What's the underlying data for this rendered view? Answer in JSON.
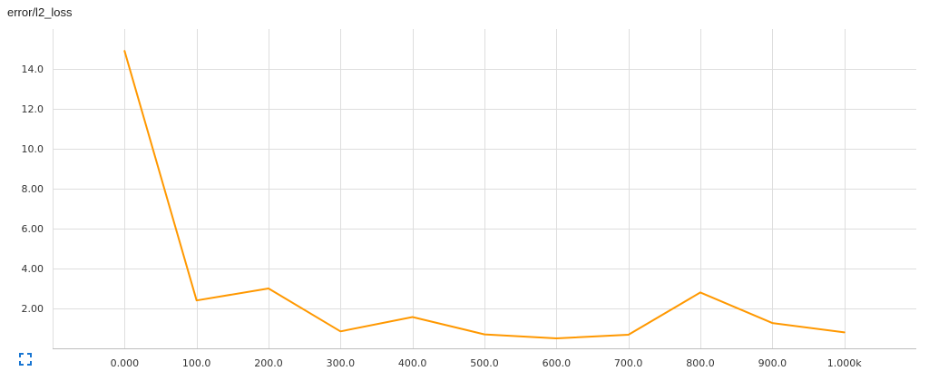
{
  "card": {
    "title": "error/l2_loss"
  },
  "icons": {
    "expand": "fullscreen-expand-icon"
  },
  "colors": {
    "series": "#ff9800",
    "expand_icon": "#1976d2"
  },
  "chart_data": {
    "type": "line",
    "title": "error/l2_loss",
    "xlabel": "",
    "ylabel": "",
    "grid": true,
    "legend": "none",
    "xlim": [
      -100,
      1100
    ],
    "ylim": [
      0,
      16
    ],
    "x_ticks": [
      0,
      100,
      200,
      300,
      400,
      500,
      600,
      700,
      800,
      900,
      1000
    ],
    "x_tick_labels": [
      "0.000",
      "100.0",
      "200.0",
      "300.0",
      "400.0",
      "500.0",
      "600.0",
      "700.0",
      "800.0",
      "900.0",
      "1.000k"
    ],
    "y_ticks": [
      2,
      4,
      6,
      8,
      10,
      12,
      14
    ],
    "y_tick_labels": [
      "2.00",
      "4.00",
      "6.00",
      "8.00",
      "10.0",
      "12.0",
      "14.0"
    ],
    "series": [
      {
        "x": [
          0,
          100,
          200,
          300,
          400,
          500,
          600,
          700,
          800,
          900,
          1000
        ],
        "y": [
          14.9,
          2.4,
          3.0,
          0.85,
          1.57,
          0.7,
          0.5,
          0.68,
          2.8,
          1.27,
          0.8
        ]
      }
    ]
  }
}
